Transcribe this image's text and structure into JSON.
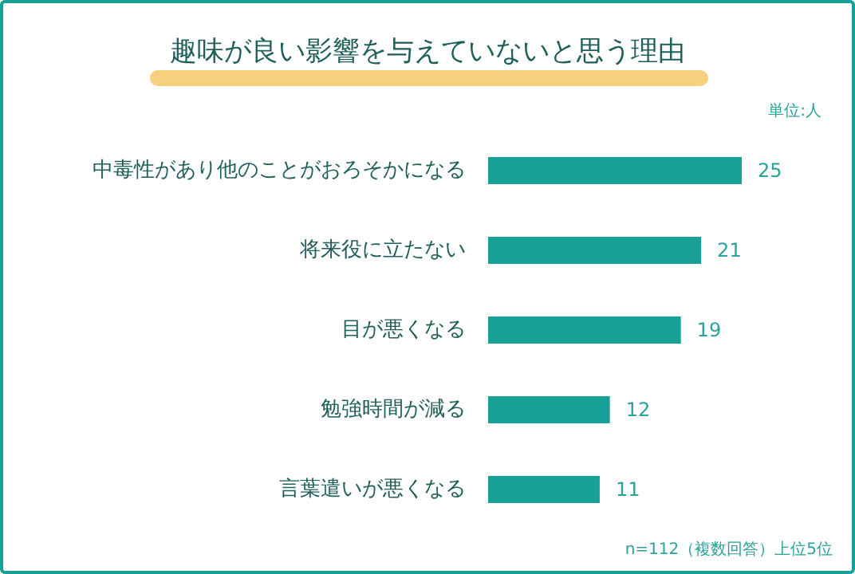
{
  "chart_data": {
    "type": "bar",
    "orientation": "horizontal",
    "title": "趣味が良い影響を与えていないと思う理由",
    "subtitle": "単位:人",
    "categories": [
      "中毒性があり他のことがおろそかになる",
      "将来役に立たない",
      "目が悪くなる",
      "勉強時間が減る",
      "言葉遣いが悪くなる"
    ],
    "values": [
      25,
      21,
      19,
      12,
      11
    ],
    "color": "#17a095",
    "data_labels": true,
    "annotations": [
      "n=112（複数回答）上位5位"
    ]
  }
}
